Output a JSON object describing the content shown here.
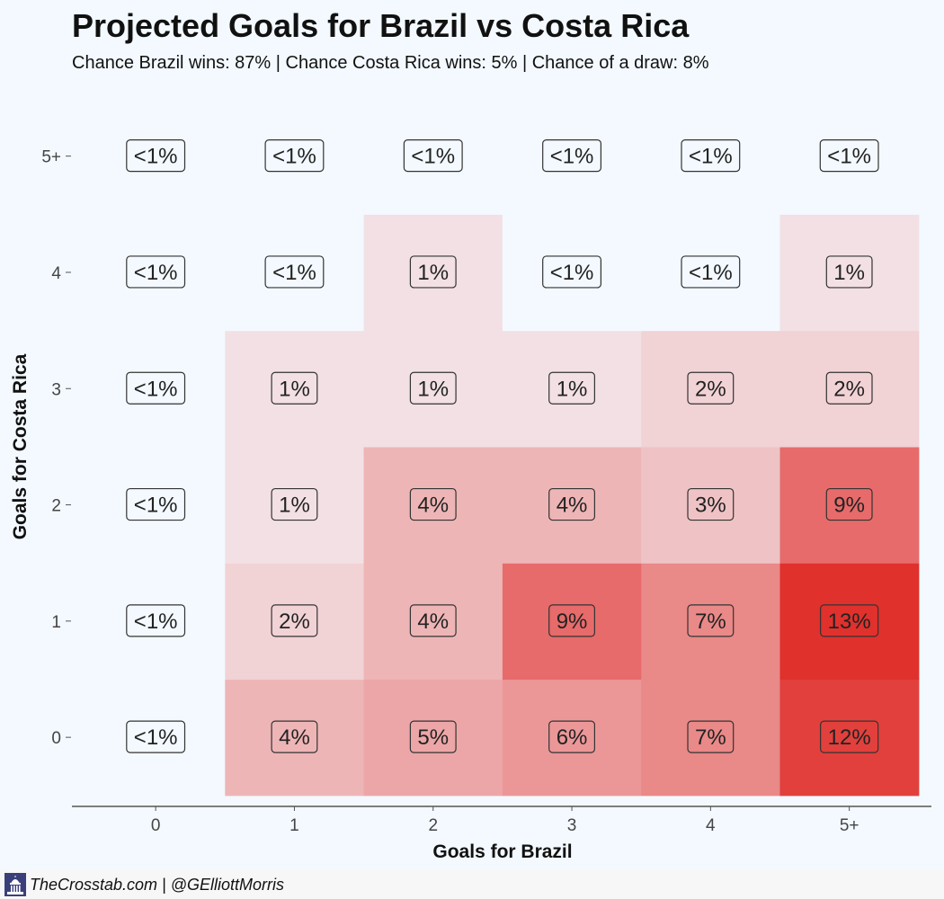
{
  "chart_data": {
    "type": "heatmap",
    "title": "Projected Goals for Brazil vs Costa Rica",
    "subtitle": "Chance Brazil wins: 87% | Chance Costa Rica wins: 5% | Chance of a draw: 8%",
    "xlabel": "Goals for Brazil",
    "ylabel": "Goals for Costa Rica",
    "x_categories": [
      "0",
      "1",
      "2",
      "3",
      "4",
      "5+"
    ],
    "y_categories": [
      "0",
      "1",
      "2",
      "3",
      "4",
      "5+"
    ],
    "values": [
      [
        0.2,
        4,
        5,
        6,
        7,
        12
      ],
      [
        0.2,
        2,
        4,
        9,
        7,
        13
      ],
      [
        0.2,
        1,
        4,
        4,
        3,
        9
      ],
      [
        0.2,
        1,
        1,
        1,
        2,
        2
      ],
      [
        0.2,
        0.2,
        1,
        0.2,
        0.2,
        1
      ],
      [
        0.1,
        0.1,
        0.1,
        0.1,
        0.1,
        0.1
      ]
    ],
    "labels": [
      [
        "<1%",
        "4%",
        "5%",
        "6%",
        "7%",
        "12%"
      ],
      [
        "<1%",
        "2%",
        "4%",
        "9%",
        "7%",
        "13%"
      ],
      [
        "<1%",
        "1%",
        "4%",
        "4%",
        "3%",
        "9%"
      ],
      [
        "<1%",
        "1%",
        "1%",
        "1%",
        "2%",
        "2%"
      ],
      [
        "<1%",
        "<1%",
        "1%",
        "<1%",
        "<1%",
        "1%"
      ],
      [
        "<1%",
        "<1%",
        "<1%",
        "<1%",
        "<1%",
        "<1%"
      ]
    ],
    "color_low": "#f3f9fe",
    "color_high": "#e0312d",
    "grid": false
  },
  "footer": {
    "credit": "TheCrosstab.com | @GElliottMorris",
    "icon": "capitol-building-icon"
  }
}
